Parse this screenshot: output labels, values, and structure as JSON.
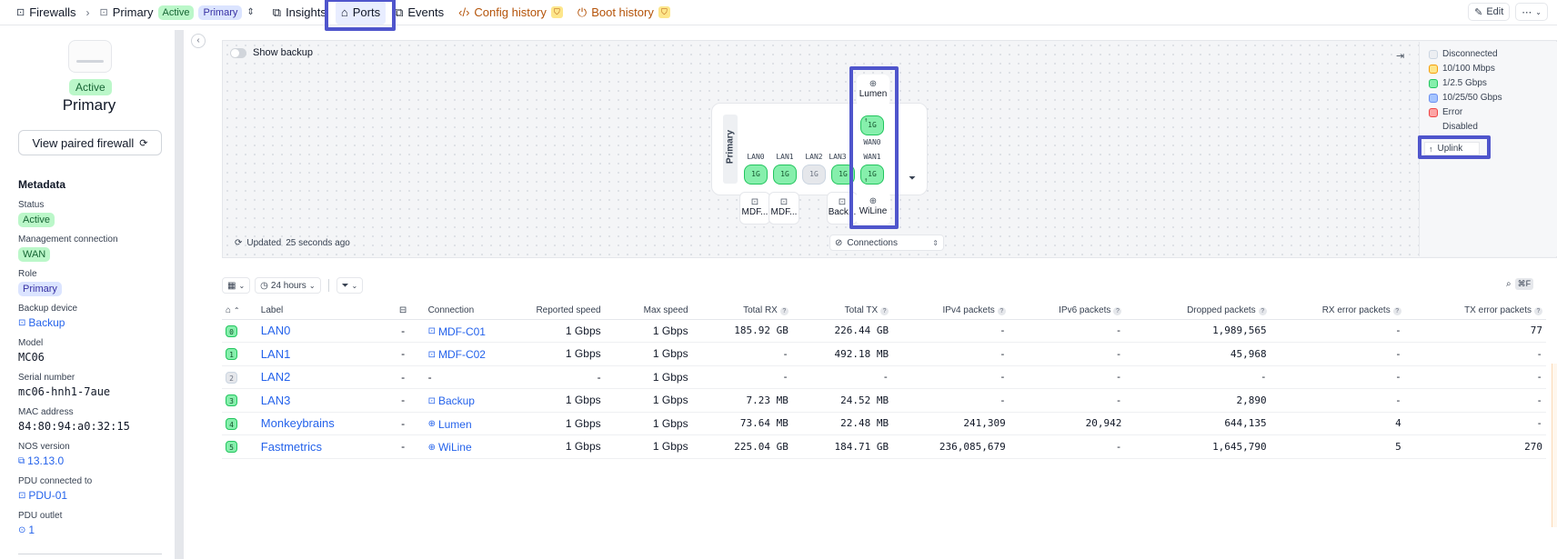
{
  "breadcrumb": {
    "parent": "Firewalls",
    "current": "Primary",
    "status_badge": "Active",
    "role_badge": "Primary"
  },
  "tabs": [
    {
      "label": "Insights",
      "icon": "insights-icon"
    },
    {
      "label": "Ports",
      "icon": "ports-icon"
    },
    {
      "label": "Events",
      "icon": "events-icon"
    },
    {
      "label": "Config history",
      "icon": "code-icon"
    },
    {
      "label": "Boot history",
      "icon": "power-icon"
    }
  ],
  "top_actions": {
    "edit": "Edit",
    "more": "⋯"
  },
  "device": {
    "status": "Active",
    "name": "Primary",
    "paired_button": "View paired firewall"
  },
  "metadata": {
    "title": "Metadata",
    "fields": [
      {
        "key": "Status",
        "value": "Active"
      },
      {
        "key": "Management connection",
        "value": "WAN"
      },
      {
        "key": "Role",
        "value": "Primary"
      },
      {
        "key": "Backup device",
        "value": "Backup"
      },
      {
        "key": "Model",
        "value": "MC06"
      },
      {
        "key": "Serial number",
        "value": "mc06-hnh1-7aue"
      },
      {
        "key": "MAC address",
        "value": "84:80:94:a0:32:15"
      },
      {
        "key": "NOS version",
        "value": "13.13.0"
      },
      {
        "key": "PDU connected to",
        "value": "PDU-01"
      },
      {
        "key": "PDU outlet",
        "value": "1"
      }
    ]
  },
  "topology": {
    "show_backup_label": "Show backup",
    "updated_prefix": "Updated",
    "updated_value": "25 seconds ago",
    "panel_label": "Primary",
    "connections_select": "Connections",
    "ports": [
      {
        "name": "LAN0",
        "speed": "1G",
        "state": "green"
      },
      {
        "name": "LAN1",
        "speed": "1G",
        "state": "green"
      },
      {
        "name": "LAN2",
        "speed": "1G",
        "state": "gray"
      },
      {
        "name": "LAN3",
        "speed": "1G",
        "state": "green"
      },
      {
        "name": "WAN0",
        "speed": "1G",
        "state": "green"
      },
      {
        "name": "WAN1",
        "speed": "1G",
        "state": "green"
      }
    ],
    "lower_nodes": [
      "MDF...",
      "MDF...",
      "Back...",
      "WiLine"
    ],
    "upper_node": "Lumen"
  },
  "legend": [
    {
      "label": "Disconnected",
      "fill": "#eceef2",
      "border": "#cbd5e1"
    },
    {
      "label": "10/100 Mbps",
      "fill": "#fde68a",
      "border": "#f59e0b"
    },
    {
      "label": "1/2.5 Gbps",
      "fill": "#86efac",
      "border": "#22c55e"
    },
    {
      "label": "10/25/50 Gbps",
      "fill": "#a5c4ff",
      "border": "#6b8ff0"
    },
    {
      "label": "Error",
      "fill": "#fca5a5",
      "border": "#ef4444"
    },
    {
      "label": "Disabled",
      "fill": "#ffffff",
      "border": "#ffffff"
    }
  ],
  "legend_uplink": "Uplink",
  "table_toolbar": {
    "timerange": "24 hours",
    "shortcut": "⌘F"
  },
  "table": {
    "headers": [
      "Label",
      "Connection",
      "Reported speed",
      "Max speed",
      "Total RX",
      "Total TX",
      "IPv4 packets",
      "IPv6 packets",
      "Dropped packets",
      "RX error packets",
      "TX error packets"
    ],
    "rows": [
      {
        "idx": "0",
        "state": "g",
        "label": "LAN0",
        "alias": "-",
        "connection": "MDF-C01",
        "conn_icon": "device",
        "reported": "1 Gbps",
        "max": "1 Gbps",
        "rx": "185.92 GB",
        "tx": "226.44 GB",
        "ipv4": "-",
        "ipv6": "-",
        "dropped": "1,989,565",
        "rxerr": "-",
        "txerr": "77"
      },
      {
        "idx": "1",
        "state": "g",
        "label": "LAN1",
        "alias": "-",
        "connection": "MDF-C02",
        "conn_icon": "device",
        "reported": "1 Gbps",
        "max": "1 Gbps",
        "rx": "-",
        "tx": "492.18 MB",
        "ipv4": "-",
        "ipv6": "-",
        "dropped": "45,968",
        "rxerr": "-",
        "txerr": "-"
      },
      {
        "idx": "2",
        "state": "gr",
        "label": "LAN2",
        "alias": "-",
        "connection": "-",
        "conn_icon": "",
        "reported": "-",
        "max": "1 Gbps",
        "rx": "-",
        "tx": "-",
        "ipv4": "-",
        "ipv6": "-",
        "dropped": "-",
        "rxerr": "-",
        "txerr": "-"
      },
      {
        "idx": "3",
        "state": "g",
        "label": "LAN3",
        "alias": "-",
        "connection": "Backup",
        "conn_icon": "device",
        "reported": "1 Gbps",
        "max": "1 Gbps",
        "rx": "7.23 MB",
        "tx": "24.52 MB",
        "ipv4": "-",
        "ipv6": "-",
        "dropped": "2,890",
        "rxerr": "-",
        "txerr": "-"
      },
      {
        "idx": "4",
        "state": "g",
        "label": "Monkeybrains",
        "alias": "-",
        "connection": "Lumen",
        "conn_icon": "globe",
        "reported": "1 Gbps",
        "max": "1 Gbps",
        "rx": "73.64 MB",
        "tx": "22.48 MB",
        "ipv4": "241,309",
        "ipv6": "20,942",
        "dropped": "644,135",
        "rxerr": "4",
        "txerr": "-"
      },
      {
        "idx": "5",
        "state": "g",
        "label": "Fastmetrics",
        "alias": "-",
        "connection": "WiLine",
        "conn_icon": "globe",
        "reported": "1 Gbps",
        "max": "1 Gbps",
        "rx": "225.04 GB",
        "tx": "184.71 GB",
        "ipv4": "236,085,679",
        "ipv6": "-",
        "dropped": "1,645,790",
        "rxerr": "5",
        "txerr": "270"
      }
    ]
  }
}
